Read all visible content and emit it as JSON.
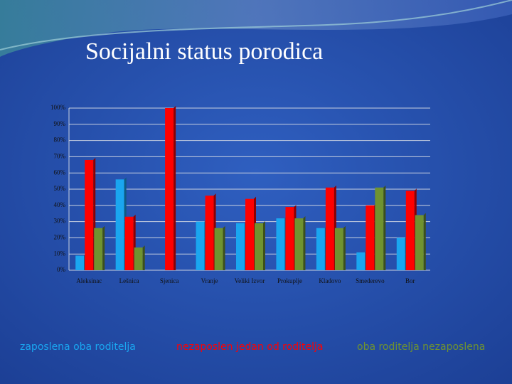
{
  "chart_data": {
    "type": "bar",
    "title": "Socijalni status porodica",
    "categories": [
      "Aleksinac",
      "Lešnica",
      "Sjenica",
      "Vranje",
      "Veliki Izvor",
      "Prokuplje",
      "Kladovo",
      "Smederevo",
      "Bor"
    ],
    "series": [
      {
        "name": "zaposlena oba roditelja",
        "color": "#1aa6f0",
        "values": [
          9,
          56,
          0,
          30,
          29,
          32,
          26,
          11,
          20
        ]
      },
      {
        "name": "nezaposlen jedan od roditelja",
        "color": "#ff0000",
        "values": [
          68,
          33,
          100,
          46,
          44,
          39,
          51,
          40,
          49
        ]
      },
      {
        "name": "oba roditelja nezaposlena",
        "color": "#6f9330",
        "values": [
          26,
          14,
          0,
          26,
          29,
          32,
          26,
          51,
          34
        ]
      }
    ],
    "ylim": [
      0,
      100
    ],
    "yticks": [
      {
        "value": 0,
        "label": "0%"
      },
      {
        "value": 10,
        "label": "10%"
      },
      {
        "value": 20,
        "label": "20%"
      },
      {
        "value": 30,
        "label": "30%"
      },
      {
        "value": 40,
        "label": "40%"
      },
      {
        "value": 50,
        "label": "50%"
      },
      {
        "value": 60,
        "label": "60%"
      },
      {
        "value": 70,
        "label": "70%"
      },
      {
        "value": 80,
        "label": "80%"
      },
      {
        "value": 90,
        "label": "90%"
      },
      {
        "value": 100,
        "label": "100%"
      }
    ],
    "grid": true
  }
}
